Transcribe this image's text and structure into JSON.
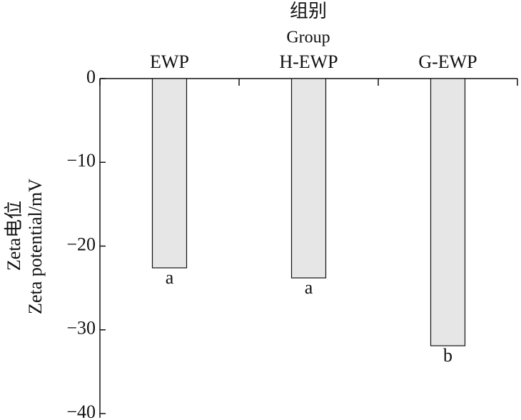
{
  "chart_data": {
    "type": "bar",
    "x_title": [
      "组别",
      "Group"
    ],
    "y_title": [
      "Zeta电位",
      "Zeta potential/mV"
    ],
    "categories": [
      "EWP",
      "H-EWP",
      "G-EWP"
    ],
    "values": [
      -22.6,
      -23.8,
      -31.9
    ],
    "significance": [
      "a",
      "a",
      "b"
    ],
    "color": "#e6e6e6",
    "ylim": [
      0,
      -40
    ],
    "yticks": [
      0,
      {
        "value": -10,
        "label": "−10"
      },
      {
        "value": -20,
        "label": "−20"
      },
      {
        "value": -30,
        "label": "−30"
      },
      {
        "value": -40,
        "label": "−40"
      }
    ]
  }
}
